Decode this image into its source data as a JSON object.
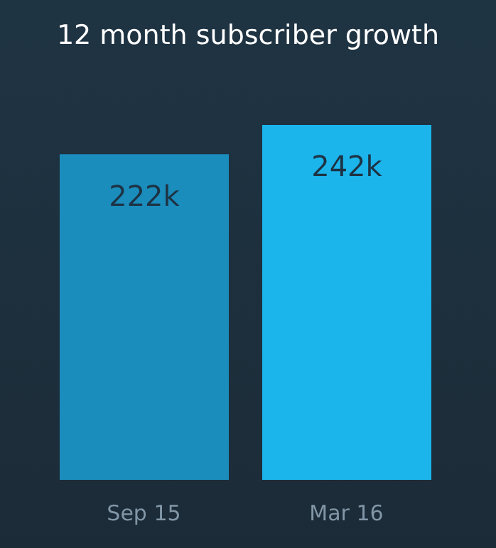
{
  "chart_data": {
    "type": "bar",
    "title": "12 month subscriber growth",
    "categories": [
      "Sep 15",
      "Mar 16"
    ],
    "values": [
      222,
      242
    ],
    "value_labels": [
      "222k",
      "242k"
    ],
    "colors": [
      "#1a8dbd",
      "#1bb5ec"
    ]
  }
}
